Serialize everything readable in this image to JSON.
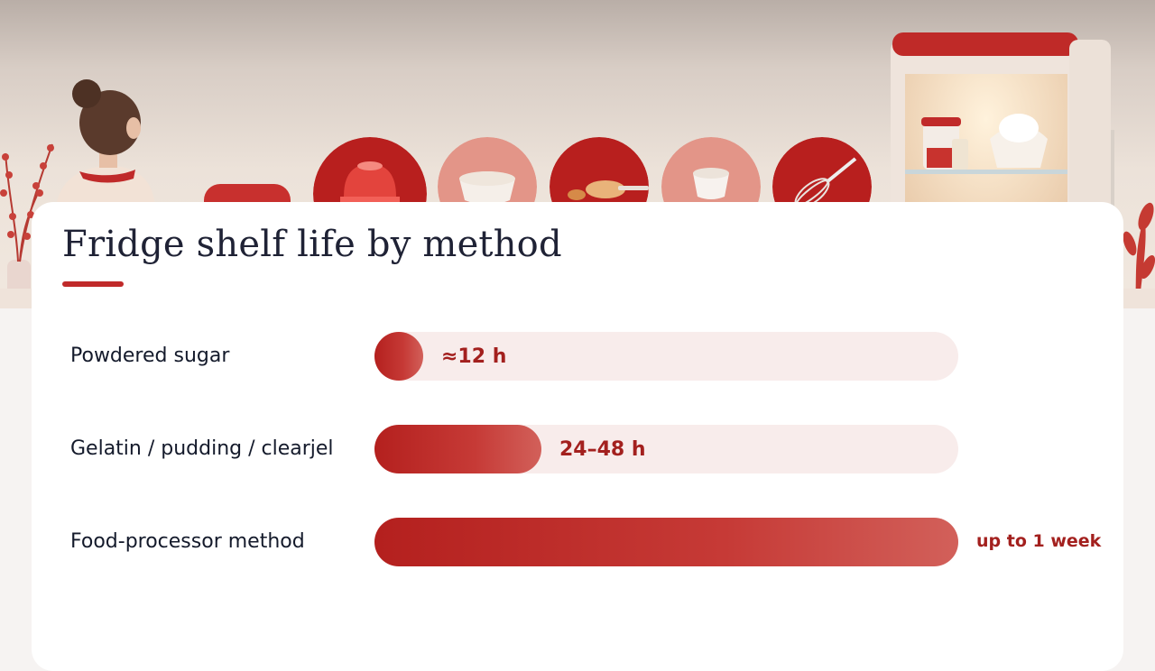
{
  "title": "Fridge shelf life by method",
  "colors": {
    "accent": "#c02a2a",
    "bar_fill": "#c0302c",
    "track": "#f8eceb",
    "value_text": "#a3201e",
    "label_text": "#141a2b"
  },
  "illustration": {
    "icons": [
      "gelatin-mold-icon",
      "sugar-bowl-icon",
      "pudding-spoon-icon",
      "powder-bowl-icon",
      "whisk-icon",
      "fridge-icon",
      "woman-baker-icon",
      "stand-mixer-icon",
      "plant-icon"
    ]
  },
  "chart_data": {
    "type": "bar",
    "orientation": "horizontal",
    "title": "Fridge shelf life by method",
    "unit": "hours",
    "categories": [
      "Powdered sugar",
      "Gelatin / pudding / clearjel",
      "Food-processor method"
    ],
    "values": [
      12,
      48,
      168
    ],
    "value_labels": [
      "≈12 h",
      "24–48 h",
      "up to 1 week"
    ],
    "xlim": [
      0,
      168
    ],
    "grid": false,
    "legend": "none"
  }
}
